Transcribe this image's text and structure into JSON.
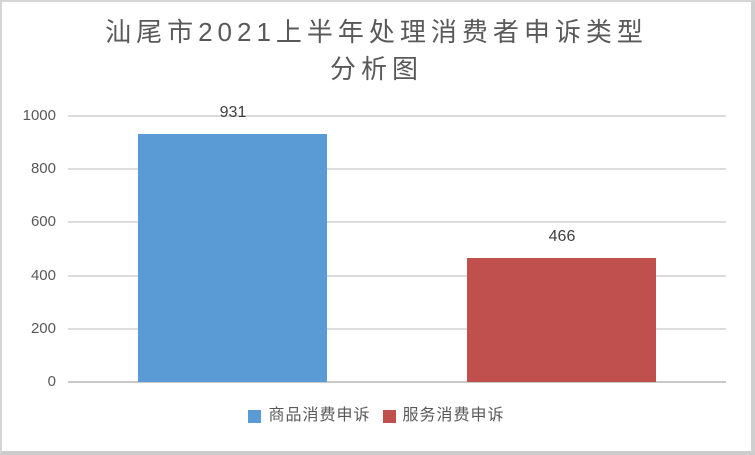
{
  "chart_data": {
    "type": "bar",
    "title": "汕尾市2021上半年处理消费者申诉类型分析图",
    "title_lines": [
      "汕尾市2021上半年处理消费者申诉类型",
      "分析图"
    ],
    "categories": [
      "商品消费申诉",
      "服务消费申诉"
    ],
    "values": [
      931,
      466
    ],
    "data_labels": [
      "931",
      "466"
    ],
    "series_colors": [
      "#5B9BD5",
      "#C0504D"
    ],
    "xlabel": "",
    "ylabel": "",
    "ylim": [
      0,
      1000
    ],
    "yticks": [
      0,
      200,
      400,
      600,
      800,
      1000
    ],
    "grid": "horizontal",
    "legend_position": "bottom",
    "legend": [
      {
        "label": "商品消费申诉",
        "color": "#5B9BD5"
      },
      {
        "label": "服务消费申诉",
        "color": "#C0504D"
      }
    ]
  },
  "styles": {
    "title_color": "#595959",
    "tick_label_color": "#595959",
    "data_label_color": "#404040",
    "gridline_color": "#DCDCDC",
    "axis_line_color": "#C9C9C9",
    "frame_border_color": "#D6D6D6",
    "background_color": "#FFFFFF"
  }
}
